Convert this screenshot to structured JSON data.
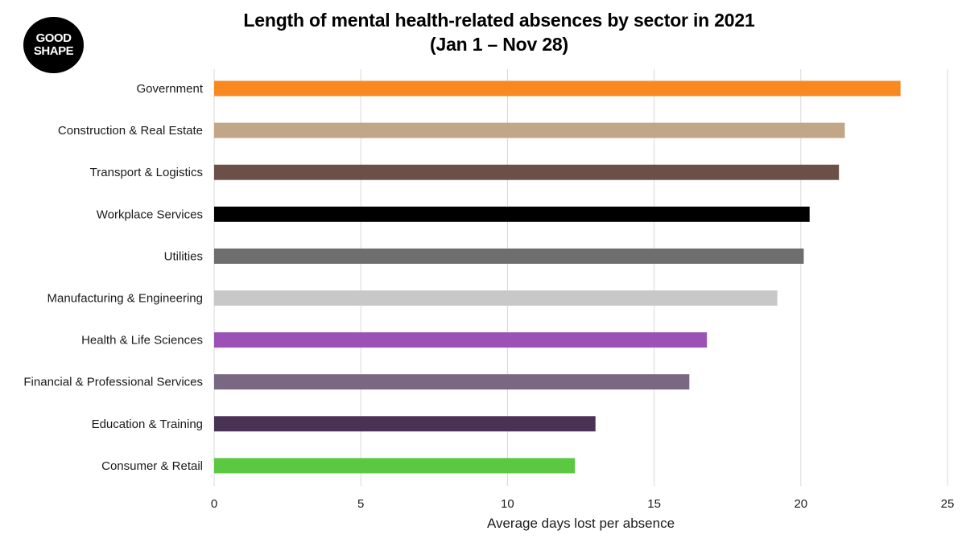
{
  "logo": {
    "line1": "GOOD",
    "line2": "SHAPE"
  },
  "chart_data": {
    "type": "bar",
    "orientation": "horizontal",
    "title_line1": "Length of mental health-related absences by sector in 2021",
    "title_line2": "(Jan 1 – Nov 28)",
    "xlabel": "Average days lost per absence",
    "ylabel": "",
    "xlim": [
      0,
      25
    ],
    "xticks": [
      0,
      5,
      10,
      15,
      20,
      25
    ],
    "grid": true,
    "categories": [
      "Government",
      "Construction & Real Estate",
      "Transport & Logistics",
      "Workplace Services",
      "Utilities",
      "Manufacturing & Engineering",
      "Health & Life Sciences",
      "Financial & Professional Services",
      "Education & Training",
      "Consumer & Retail"
    ],
    "values": [
      23.4,
      21.5,
      21.3,
      20.3,
      20.1,
      19.2,
      16.8,
      16.2,
      13.0,
      12.3
    ],
    "colors": [
      "#F7891F",
      "#C2A688",
      "#6C4F47",
      "#000000",
      "#6E6E6E",
      "#C8C8C8",
      "#9B51B5",
      "#7A6882",
      "#4A3255",
      "#5CC842"
    ]
  }
}
